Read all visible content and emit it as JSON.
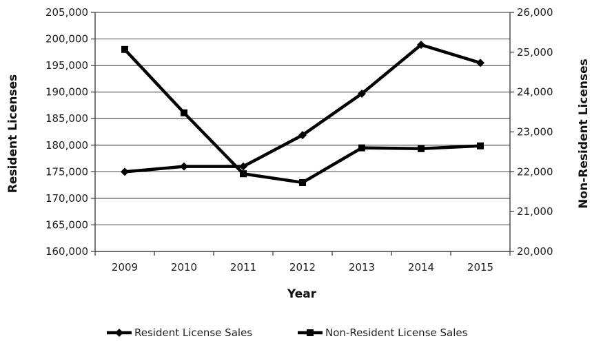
{
  "chart_data": {
    "type": "line",
    "title": "",
    "xlabel": "Year",
    "ylabel": "Resident Licenses",
    "y2label": "Non-Resident Licenses",
    "categories": [
      "2009",
      "2010",
      "2011",
      "2012",
      "2013",
      "2014",
      "2015"
    ],
    "ylim": [
      160000,
      205000
    ],
    "y2lim": [
      20000,
      26000
    ],
    "yticks": [
      "160,000",
      "165,000",
      "170,000",
      "175,000",
      "180,000",
      "185,000",
      "190,000",
      "195,000",
      "200,000",
      "205,000"
    ],
    "y2ticks": [
      "20,000",
      "21,000",
      "22,000",
      "23,000",
      "24,000",
      "25,000",
      "26,000"
    ],
    "grid": true,
    "legend_position": "bottom",
    "series": [
      {
        "name": "Resident License Sales",
        "axis": "left",
        "marker": "diamond",
        "color": "#000000",
        "values": [
          175000,
          176000,
          176000,
          181900,
          189700,
          198900,
          195500
        ]
      },
      {
        "name": "Non-Resident License Sales",
        "axis": "right",
        "marker": "square",
        "color": "#000000",
        "values": [
          25070,
          23480,
          21950,
          21730,
          22600,
          22580,
          22650
        ]
      }
    ]
  }
}
